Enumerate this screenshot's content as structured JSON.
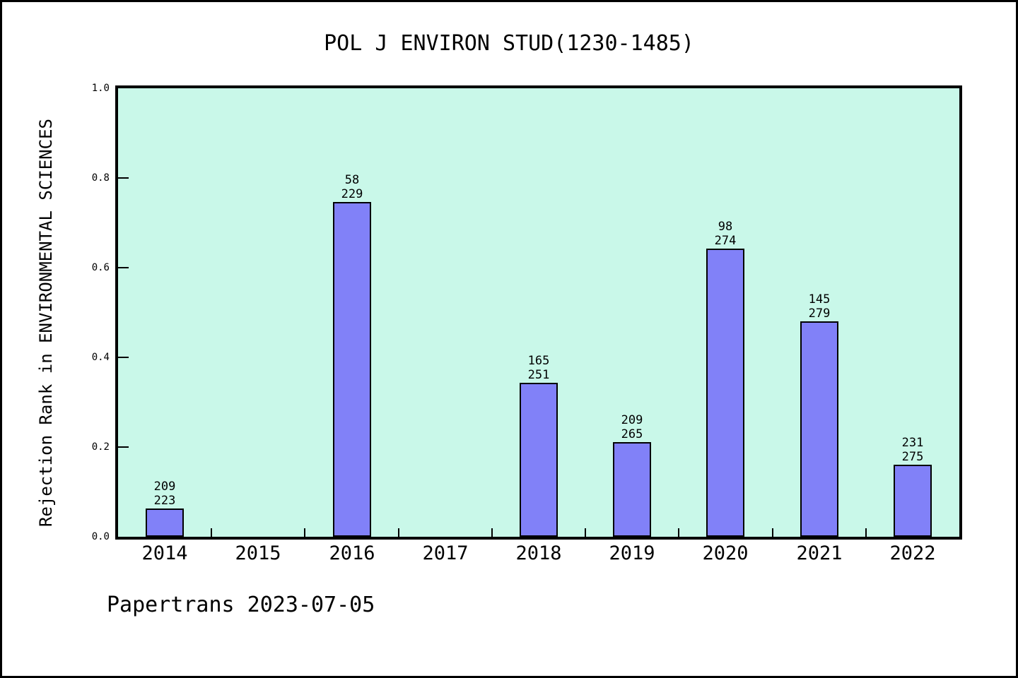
{
  "title": "POL J ENVIRON STUD(1230-1485)",
  "footer": "Papertrans 2023-07-05",
  "colors": {
    "plot_background": "#c9f8e9",
    "bar_fill": "#8181f8",
    "bar_border": "#000000",
    "frame": "#000000"
  },
  "chart_data": {
    "type": "bar",
    "title": "POL J ENVIRON STUD(1230-1485)",
    "xlabel": "",
    "ylabel": "Rejection Rank in ENVIRONMENTAL SCIENCES",
    "ylim": [
      0,
      1
    ],
    "yticks": [
      "0.0",
      "0.2",
      "0.4",
      "0.6",
      "0.8",
      "1.0"
    ],
    "grid": false,
    "legend": false,
    "categories": [
      "2014",
      "2015",
      "2016",
      "2017",
      "2018",
      "2019",
      "2020",
      "2021",
      "2022"
    ],
    "values": [
      0.063,
      null,
      0.747,
      null,
      0.343,
      0.211,
      0.642,
      0.48,
      0.16
    ],
    "bar_labels": [
      [
        "209",
        "223"
      ],
      null,
      [
        "58",
        "229"
      ],
      null,
      [
        "165",
        "251"
      ],
      [
        "209",
        "265"
      ],
      [
        "98",
        "274"
      ],
      [
        "145",
        "279"
      ],
      [
        "231",
        "275"
      ]
    ]
  }
}
